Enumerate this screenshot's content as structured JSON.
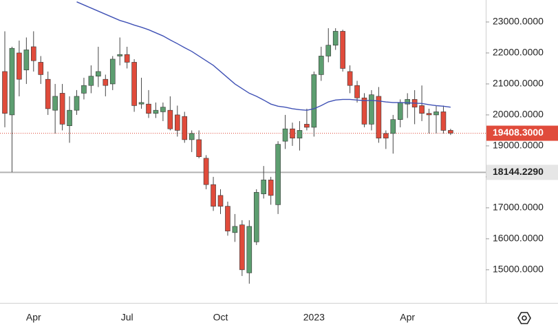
{
  "chart_data": {
    "type": "candlestick",
    "categories": [
      null,
      null,
      null,
      null,
      "Apr",
      null,
      null,
      null,
      null,
      null,
      null,
      null,
      null,
      null,
      null,
      null,
      null,
      "Jul",
      null,
      null,
      null,
      null,
      null,
      null,
      null,
      null,
      null,
      null,
      null,
      null,
      "Oct",
      null,
      null,
      null,
      null,
      null,
      null,
      null,
      null,
      null,
      null,
      null,
      null,
      "2023",
      null,
      null,
      null,
      null,
      null,
      null,
      null,
      null,
      null,
      null,
      null,
      null,
      "Apr",
      null,
      null,
      null,
      null,
      null,
      null
    ],
    "open": [
      21400,
      20000,
      22000,
      21450,
      22200,
      21700,
      21150,
      20150,
      20700,
      19650,
      20150,
      20700,
      20950,
      21250,
      21150,
      21000,
      21900,
      21950,
      21700,
      20350,
      20350,
      20050,
      20100,
      20150,
      20000,
      19950,
      19200,
      19200,
      18600,
      17750,
      17400,
      17050,
      16200,
      16450,
      14900,
      15900,
      17450,
      17900,
      17100,
      19150,
      19550,
      19250,
      19700,
      19600,
      21300,
      21900,
      22250,
      22700,
      21400,
      20950,
      20550,
      19700,
      20600,
      19400,
      19400,
      19850,
      20350,
      20500,
      20300,
      20050,
      20000,
      20100,
      19500
    ],
    "high": [
      22700,
      22200,
      22400,
      22500,
      22700,
      21900,
      21400,
      21000,
      21000,
      20600,
      20800,
      21200,
      21600,
      22200,
      21300,
      21900,
      22500,
      22200,
      21800,
      21200,
      20800,
      20400,
      20400,
      20600,
      20300,
      20100,
      19500,
      19500,
      18700,
      18000,
      17600,
      17200,
      16800,
      16600,
      16600,
      17600,
      18350,
      18000,
      19150,
      20000,
      19750,
      19800,
      20200,
      21400,
      22200,
      22800,
      22800,
      22750,
      21600,
      21100,
      20700,
      20800,
      20900,
      19500,
      20000,
      20500,
      20700,
      20800,
      20950,
      20200,
      20300,
      20300,
      19550
    ],
    "low": [
      19600,
      18150,
      20600,
      21000,
      21400,
      21000,
      20000,
      19400,
      19500,
      19100,
      20000,
      20500,
      20700,
      20900,
      20600,
      20800,
      21600,
      21500,
      20100,
      20200,
      19900,
      19900,
      19800,
      19500,
      19300,
      19100,
      18800,
      18600,
      17600,
      16900,
      16800,
      16100,
      15900,
      14800,
      14550,
      15800,
      17300,
      17100,
      16800,
      18900,
      19000,
      18850,
      19500,
      19300,
      21100,
      21700,
      22100,
      21400,
      20700,
      20400,
      19600,
      19500,
      19100,
      18900,
      18750,
      19600,
      19900,
      19700,
      19800,
      19400,
      19400,
      19400,
      19350
    ],
    "close": [
      20050,
      22150,
      21150,
      22100,
      21750,
      21300,
      20200,
      20600,
      19700,
      20150,
      20600,
      20950,
      21250,
      21400,
      20950,
      21800,
      21950,
      21700,
      20300,
      20400,
      20050,
      20150,
      20250,
      19550,
      19500,
      19200,
      19400,
      18650,
      17750,
      17050,
      17050,
      16250,
      16400,
      15000,
      16400,
      17500,
      17900,
      17400,
      19050,
      19550,
      19250,
      19500,
      19600,
      21300,
      21900,
      22250,
      22700,
      21500,
      20950,
      20550,
      19700,
      20650,
      19250,
      19250,
      19850,
      20400,
      20500,
      20250,
      20050,
      20000,
      20100,
      19500,
      19408.3
    ],
    "up_color": "#5d9e70",
    "down_color": "#e04b3b",
    "ma": {
      "color": "#3f51b5",
      "values": [
        null,
        null,
        null,
        null,
        null,
        null,
        null,
        null,
        null,
        null,
        23650,
        23550,
        23450,
        23350,
        23250,
        23150,
        23050,
        22980,
        22900,
        22830,
        22750,
        22650,
        22550,
        22420,
        22300,
        22170,
        22050,
        21900,
        21750,
        21600,
        21400,
        21200,
        21000,
        20850,
        20700,
        20600,
        20480,
        20350,
        20280,
        20250,
        20200,
        20170,
        20150,
        20200,
        20300,
        20420,
        20480,
        20500,
        20500,
        20480,
        20460,
        20470,
        20450,
        20420,
        20400,
        20400,
        20390,
        20380,
        20370,
        20330,
        20300,
        20280,
        20250
      ]
    },
    "ylim": [
      13930,
      23710
    ],
    "yticks": [
      {
        "value": 15000,
        "label": "15000.0000"
      },
      {
        "value": 16000,
        "label": "16000.0000"
      },
      {
        "value": 17000,
        "label": "17000.0000"
      },
      {
        "value": 18000,
        "label": "18000.0000"
      },
      {
        "value": 19000,
        "label": "19000.0000"
      },
      {
        "value": 20000,
        "label": "20000.0000"
      },
      {
        "value": 21000,
        "label": "21000.0000"
      },
      {
        "value": 22000,
        "label": "22000.0000"
      },
      {
        "value": 23000,
        "label": "23000.0000"
      }
    ],
    "price_line": {
      "value": 19408.3,
      "label": "19408.3000",
      "color": "#e04b3b"
    },
    "level_line": {
      "value": 18144.229,
      "label": "18144.2290",
      "color": "#b2b2b2"
    }
  }
}
